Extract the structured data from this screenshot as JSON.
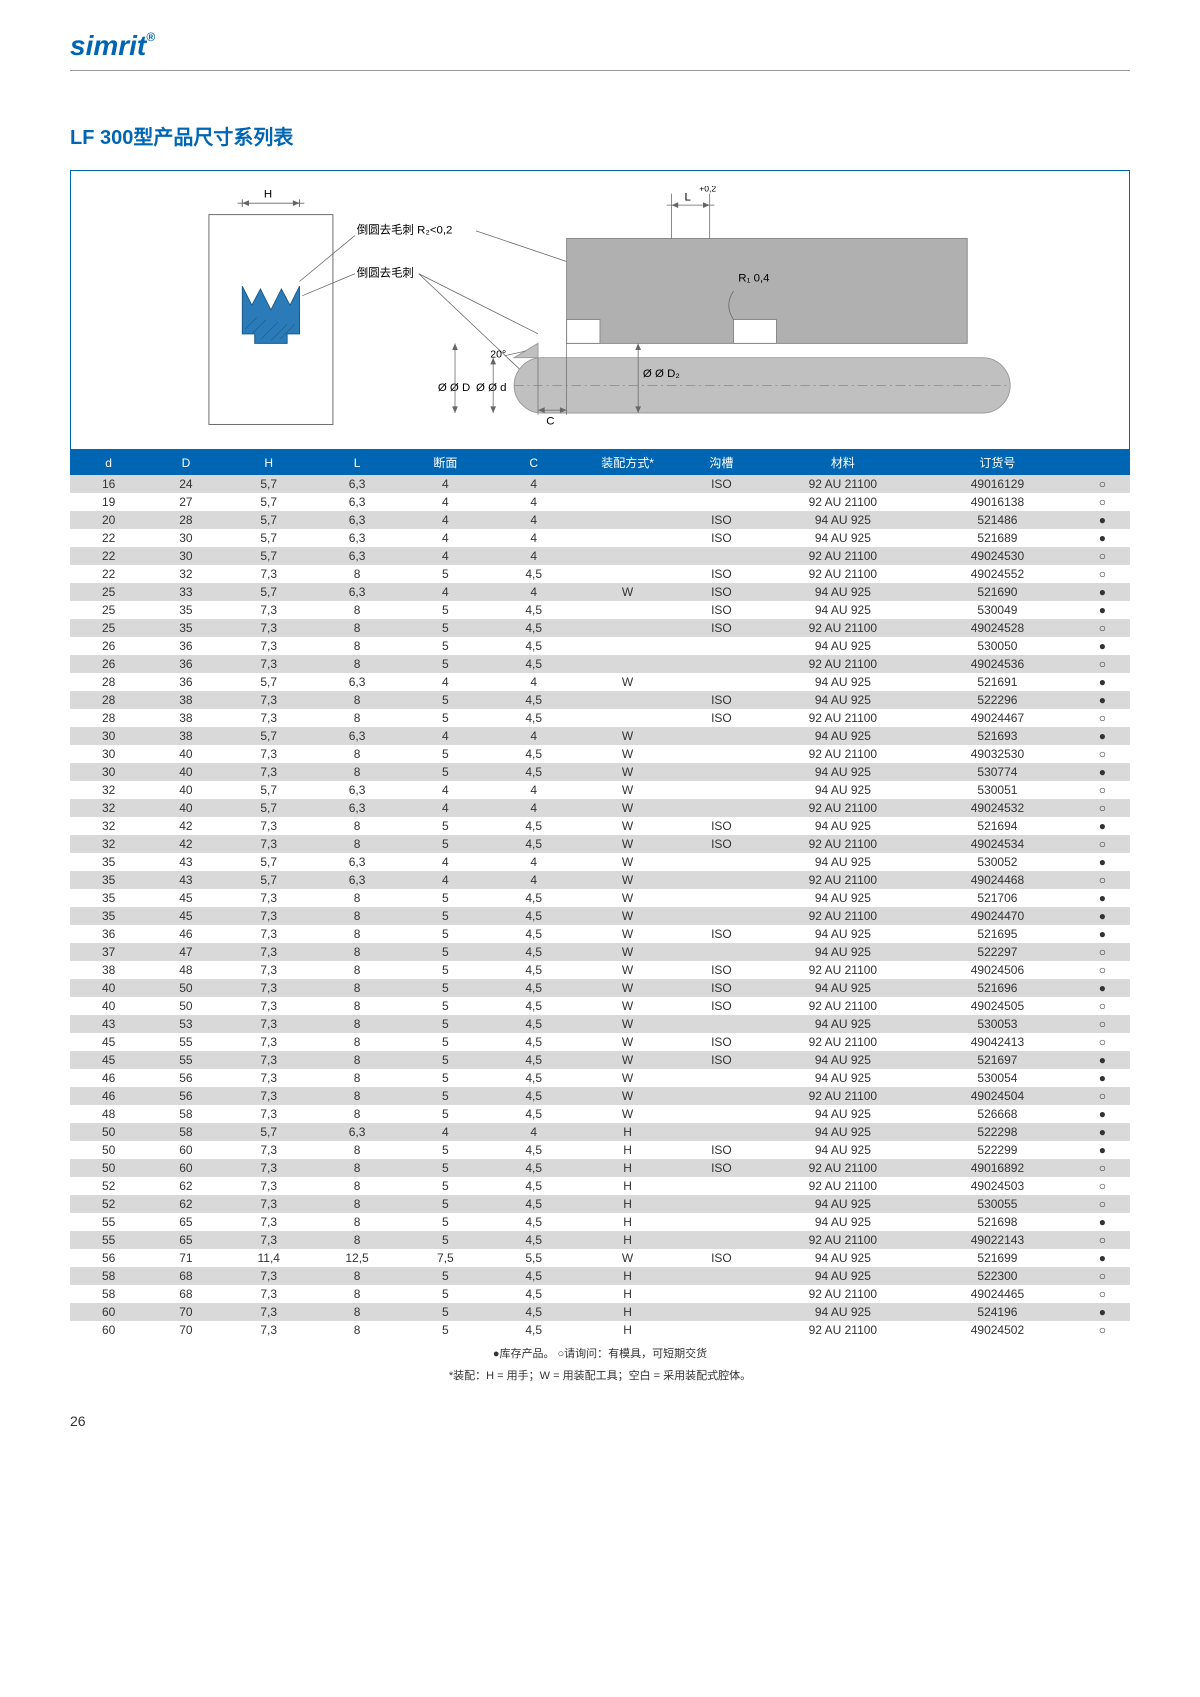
{
  "logo": "simrit",
  "title": "LF 300型产品尺寸系列表",
  "diagram": {
    "label_H": "H",
    "label_L": "L",
    "label_L_tol": "+0,2",
    "label_r2": "倒圆去毛刺 R₂<0,2",
    "label_r_plain": "倒圆去毛刺",
    "label_R1": "R₁ 0,4",
    "label_angle": "20°",
    "label_oD": "Ø D",
    "label_od": "Ø d",
    "label_oD2": "Ø D₂",
    "label_C": "C",
    "seal_color": "#2b7bb9",
    "seal_stroke": "#1a5a8a",
    "shaft_fill": "#c0c0c0",
    "housing_fill": "#b0b0b0",
    "line_color": "#666"
  },
  "columns": [
    "d",
    "D",
    "H",
    "L",
    "断面",
    "C",
    "装配方式*",
    "沟槽",
    "材料",
    "订货号",
    ""
  ],
  "col_widths": [
    "7%",
    "7%",
    "8%",
    "8%",
    "8%",
    "8%",
    "9%",
    "8%",
    "14%",
    "14%",
    "5%"
  ],
  "marks": {
    "filled": "●",
    "hollow": "○"
  },
  "rows": [
    [
      "16",
      "24",
      "5,7",
      "6,3",
      "4",
      "4",
      "",
      "ISO",
      "92 AU 21100",
      "49016129",
      "○"
    ],
    [
      "19",
      "27",
      "5,7",
      "6,3",
      "4",
      "4",
      "",
      "",
      "92 AU 21100",
      "49016138",
      "○"
    ],
    [
      "20",
      "28",
      "5,7",
      "6,3",
      "4",
      "4",
      "",
      "ISO",
      "94 AU 925",
      "521486",
      "●"
    ],
    [
      "22",
      "30",
      "5,7",
      "6,3",
      "4",
      "4",
      "",
      "ISO",
      "94 AU 925",
      "521689",
      "●"
    ],
    [
      "22",
      "30",
      "5,7",
      "6,3",
      "4",
      "4",
      "",
      "",
      "92 AU 21100",
      "49024530",
      "○"
    ],
    [
      "22",
      "32",
      "7,3",
      "8",
      "5",
      "4,5",
      "",
      "ISO",
      "92 AU 21100",
      "49024552",
      "○"
    ],
    [
      "25",
      "33",
      "5,7",
      "6,3",
      "4",
      "4",
      "W",
      "ISO",
      "94 AU 925",
      "521690",
      "●"
    ],
    [
      "25",
      "35",
      "7,3",
      "8",
      "5",
      "4,5",
      "",
      "ISO",
      "94 AU 925",
      "530049",
      "●"
    ],
    [
      "25",
      "35",
      "7,3",
      "8",
      "5",
      "4,5",
      "",
      "ISO",
      "92 AU 21100",
      "49024528",
      "○"
    ],
    [
      "26",
      "36",
      "7,3",
      "8",
      "5",
      "4,5",
      "",
      "",
      "94 AU 925",
      "530050",
      "●"
    ],
    [
      "26",
      "36",
      "7,3",
      "8",
      "5",
      "4,5",
      "",
      "",
      "92 AU 21100",
      "49024536",
      "○"
    ],
    [
      "28",
      "36",
      "5,7",
      "6,3",
      "4",
      "4",
      "W",
      "",
      "94 AU 925",
      "521691",
      "●"
    ],
    [
      "28",
      "38",
      "7,3",
      "8",
      "5",
      "4,5",
      "",
      "ISO",
      "94 AU 925",
      "522296",
      "●"
    ],
    [
      "28",
      "38",
      "7,3",
      "8",
      "5",
      "4,5",
      "",
      "ISO",
      "92 AU 21100",
      "49024467",
      "○"
    ],
    [
      "30",
      "38",
      "5,7",
      "6,3",
      "4",
      "4",
      "W",
      "",
      "94 AU 925",
      "521693",
      "●"
    ],
    [
      "30",
      "40",
      "7,3",
      "8",
      "5",
      "4,5",
      "W",
      "",
      "92 AU 21100",
      "49032530",
      "○"
    ],
    [
      "30",
      "40",
      "7,3",
      "8",
      "5",
      "4,5",
      "W",
      "",
      "94 AU 925",
      "530774",
      "●"
    ],
    [
      "32",
      "40",
      "5,7",
      "6,3",
      "4",
      "4",
      "W",
      "",
      "94 AU 925",
      "530051",
      "○"
    ],
    [
      "32",
      "40",
      "5,7",
      "6,3",
      "4",
      "4",
      "W",
      "",
      "92 AU 21100",
      "49024532",
      "○"
    ],
    [
      "32",
      "42",
      "7,3",
      "8",
      "5",
      "4,5",
      "W",
      "ISO",
      "94 AU 925",
      "521694",
      "●"
    ],
    [
      "32",
      "42",
      "7,3",
      "8",
      "5",
      "4,5",
      "W",
      "ISO",
      "92 AU 21100",
      "49024534",
      "○"
    ],
    [
      "35",
      "43",
      "5,7",
      "6,3",
      "4",
      "4",
      "W",
      "",
      "94 AU 925",
      "530052",
      "●"
    ],
    [
      "35",
      "43",
      "5,7",
      "6,3",
      "4",
      "4",
      "W",
      "",
      "92 AU 21100",
      "49024468",
      "○"
    ],
    [
      "35",
      "45",
      "7,3",
      "8",
      "5",
      "4,5",
      "W",
      "",
      "94 AU 925",
      "521706",
      "●"
    ],
    [
      "35",
      "45",
      "7,3",
      "8",
      "5",
      "4,5",
      "W",
      "",
      "92 AU 21100",
      "49024470",
      "●"
    ],
    [
      "36",
      "46",
      "7,3",
      "8",
      "5",
      "4,5",
      "W",
      "ISO",
      "94 AU 925",
      "521695",
      "●"
    ],
    [
      "37",
      "47",
      "7,3",
      "8",
      "5",
      "4,5",
      "W",
      "",
      "94 AU 925",
      "522297",
      "○"
    ],
    [
      "38",
      "48",
      "7,3",
      "8",
      "5",
      "4,5",
      "W",
      "ISO",
      "92 AU 21100",
      "49024506",
      "○"
    ],
    [
      "40",
      "50",
      "7,3",
      "8",
      "5",
      "4,5",
      "W",
      "ISO",
      "94 AU 925",
      "521696",
      "●"
    ],
    [
      "40",
      "50",
      "7,3",
      "8",
      "5",
      "4,5",
      "W",
      "ISO",
      "92 AU 21100",
      "49024505",
      "○"
    ],
    [
      "43",
      "53",
      "7,3",
      "8",
      "5",
      "4,5",
      "W",
      "",
      "94 AU 925",
      "530053",
      "○"
    ],
    [
      "45",
      "55",
      "7,3",
      "8",
      "5",
      "4,5",
      "W",
      "ISO",
      "92 AU 21100",
      "49042413",
      "○"
    ],
    [
      "45",
      "55",
      "7,3",
      "8",
      "5",
      "4,5",
      "W",
      "ISO",
      "94 AU 925",
      "521697",
      "●"
    ],
    [
      "46",
      "56",
      "7,3",
      "8",
      "5",
      "4,5",
      "W",
      "",
      "94 AU 925",
      "530054",
      "●"
    ],
    [
      "46",
      "56",
      "7,3",
      "8",
      "5",
      "4,5",
      "W",
      "",
      "92 AU 21100",
      "49024504",
      "○"
    ],
    [
      "48",
      "58",
      "7,3",
      "8",
      "5",
      "4,5",
      "W",
      "",
      "94 AU 925",
      "526668",
      "●"
    ],
    [
      "50",
      "58",
      "5,7",
      "6,3",
      "4",
      "4",
      "H",
      "",
      "94 AU 925",
      "522298",
      "●"
    ],
    [
      "50",
      "60",
      "7,3",
      "8",
      "5",
      "4,5",
      "H",
      "ISO",
      "94 AU 925",
      "522299",
      "●"
    ],
    [
      "50",
      "60",
      "7,3",
      "8",
      "5",
      "4,5",
      "H",
      "ISO",
      "92 AU 21100",
      "49016892",
      "○"
    ],
    [
      "52",
      "62",
      "7,3",
      "8",
      "5",
      "4,5",
      "H",
      "",
      "92 AU 21100",
      "49024503",
      "○"
    ],
    [
      "52",
      "62",
      "7,3",
      "8",
      "5",
      "4,5",
      "H",
      "",
      "94 AU 925",
      "530055",
      "○"
    ],
    [
      "55",
      "65",
      "7,3",
      "8",
      "5",
      "4,5",
      "H",
      "",
      "94 AU 925",
      "521698",
      "●"
    ],
    [
      "55",
      "65",
      "7,3",
      "8",
      "5",
      "4,5",
      "H",
      "",
      "92 AU 21100",
      "49022143",
      "○"
    ],
    [
      "56",
      "71",
      "11,4",
      "12,5",
      "7,5",
      "5,5",
      "W",
      "ISO",
      "94 AU 925",
      "521699",
      "●"
    ],
    [
      "58",
      "68",
      "7,3",
      "8",
      "5",
      "4,5",
      "H",
      "",
      "94 AU 925",
      "522300",
      "○"
    ],
    [
      "58",
      "68",
      "7,3",
      "8",
      "5",
      "4,5",
      "H",
      "",
      "92 AU 21100",
      "49024465",
      "○"
    ],
    [
      "60",
      "70",
      "7,3",
      "8",
      "5",
      "4,5",
      "H",
      "",
      "94 AU 925",
      "524196",
      "●"
    ],
    [
      "60",
      "70",
      "7,3",
      "8",
      "5",
      "4,5",
      "H",
      "",
      "92 AU 21100",
      "49024502",
      "○"
    ]
  ],
  "footnote1": "●库存产品。 ○请询问：有模具，可短期交货",
  "footnote2": "*装配：H = 用手；W = 用装配工具；空白 = 采用装配式腔体。",
  "pagenum": "26"
}
